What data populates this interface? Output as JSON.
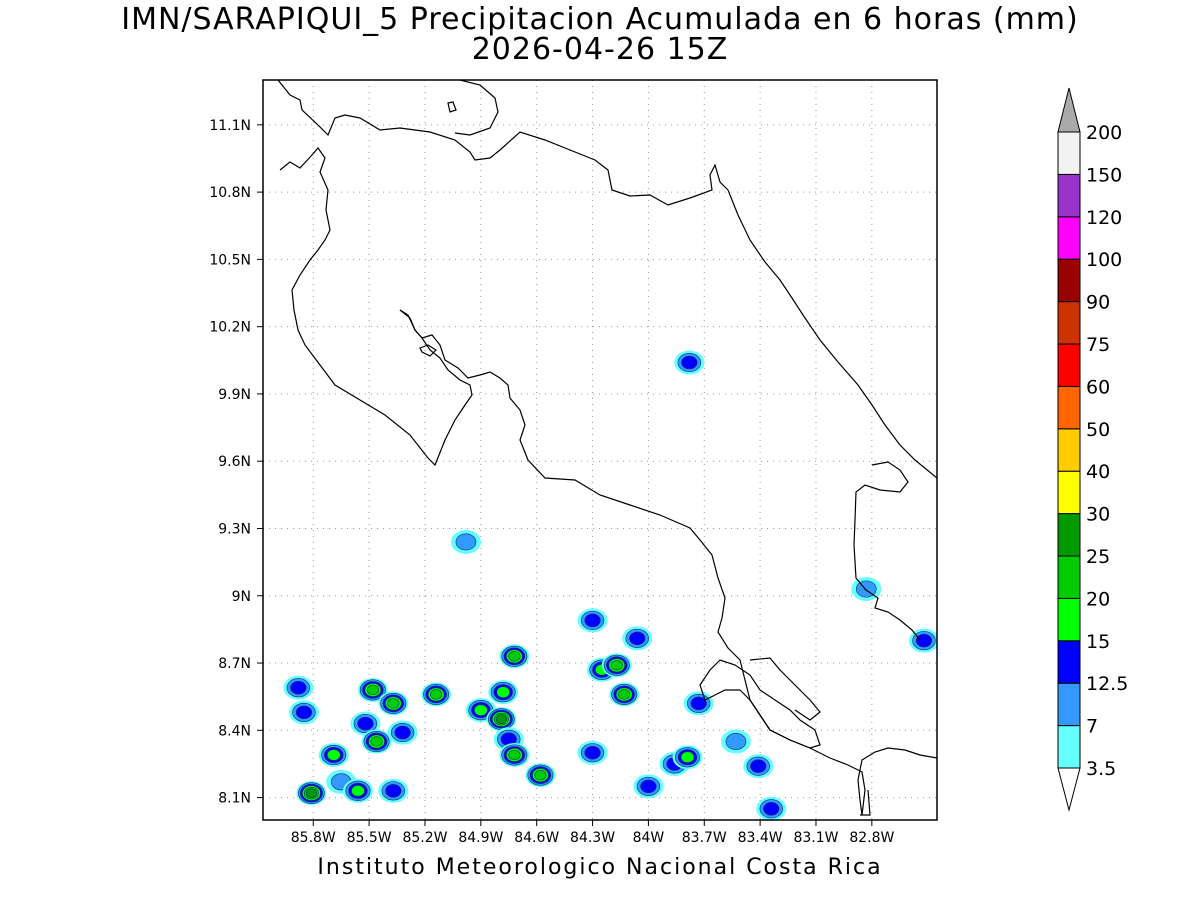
{
  "title": {
    "line1": "IMN/SARAPIQUI_5 Precipitacion Acumulada en 6 horas (mm)",
    "line2": "2026-04-26 15Z"
  },
  "footer": "Instituto Meteorologico Nacional Costa Rica",
  "map": {
    "lon_range": [
      -86.07,
      -82.45
    ],
    "lat_range": [
      8.0,
      11.3
    ],
    "lat_ticks": [
      "11.1N",
      "10.8N",
      "10.5N",
      "10.2N",
      "9.9N",
      "9.6N",
      "9.3N",
      "9N",
      "8.7N",
      "8.4N",
      "8.1N"
    ],
    "lon_ticks": [
      "85.8W",
      "85.5W",
      "85.2W",
      "84.9W",
      "84.6W",
      "84.3W",
      "84W",
      "83.7W",
      "83.4W",
      "83.1W",
      "82.8W"
    ],
    "grid": "dotted"
  },
  "colorbar": {
    "unit": "mm",
    "levels": [
      "3.5",
      "7",
      "12.5",
      "15",
      "20",
      "25",
      "30",
      "40",
      "50",
      "60",
      "75",
      "90",
      "100",
      "120",
      "150",
      "200"
    ],
    "colors": [
      "#66ffff",
      "#3399ff",
      "#0000ff",
      "#00ff00",
      "#00cc00",
      "#009900",
      "#ffff00",
      "#ffcc00",
      "#ff6600",
      "#ff0000",
      "#cc3300",
      "#990000",
      "#ff00ff",
      "#9933cc",
      "#f2f2f2",
      "#aaaaaa"
    ]
  },
  "precip_cells": [
    {
      "lon": -85.88,
      "lat": 8.59,
      "max": 12.5
    },
    {
      "lon": -85.85,
      "lat": 8.48,
      "max": 12.5
    },
    {
      "lon": -85.81,
      "lat": 8.12,
      "max": 25
    },
    {
      "lon": -85.69,
      "lat": 8.29,
      "max": 15
    },
    {
      "lon": -85.65,
      "lat": 8.17,
      "max": 7
    },
    {
      "lon": -85.56,
      "lat": 8.13,
      "max": 15
    },
    {
      "lon": -85.52,
      "lat": 8.43,
      "max": 12.5
    },
    {
      "lon": -85.48,
      "lat": 8.58,
      "max": 20
    },
    {
      "lon": -85.46,
      "lat": 8.35,
      "max": 20
    },
    {
      "lon": -85.37,
      "lat": 8.52,
      "max": 20
    },
    {
      "lon": -85.37,
      "lat": 8.13,
      "max": 12.5
    },
    {
      "lon": -85.32,
      "lat": 8.39,
      "max": 12.5
    },
    {
      "lon": -85.14,
      "lat": 8.56,
      "max": 20
    },
    {
      "lon": -84.98,
      "lat": 9.24,
      "max": 7
    },
    {
      "lon": -84.9,
      "lat": 8.49,
      "max": 15
    },
    {
      "lon": -84.79,
      "lat": 8.45,
      "max": 25
    },
    {
      "lon": -84.78,
      "lat": 8.57,
      "max": 15
    },
    {
      "lon": -84.75,
      "lat": 8.36,
      "max": 12.5
    },
    {
      "lon": -84.72,
      "lat": 8.73,
      "max": 20
    },
    {
      "lon": -84.72,
      "lat": 8.29,
      "max": 20
    },
    {
      "lon": -84.58,
      "lat": 8.2,
      "max": 20
    },
    {
      "lon": -84.3,
      "lat": 8.3,
      "max": 12.5
    },
    {
      "lon": -84.3,
      "lat": 8.89,
      "max": 12.5
    },
    {
      "lon": -84.25,
      "lat": 8.67,
      "max": 15
    },
    {
      "lon": -84.17,
      "lat": 8.69,
      "max": 20
    },
    {
      "lon": -84.13,
      "lat": 8.56,
      "max": 20
    },
    {
      "lon": -84.06,
      "lat": 8.81,
      "max": 12.5
    },
    {
      "lon": -84.0,
      "lat": 8.15,
      "max": 12.5
    },
    {
      "lon": -83.86,
      "lat": 8.25,
      "max": 12.5
    },
    {
      "lon": -83.79,
      "lat": 8.28,
      "max": 15
    },
    {
      "lon": -83.78,
      "lat": 10.04,
      "max": 12.5
    },
    {
      "lon": -83.73,
      "lat": 8.52,
      "max": 12.5
    },
    {
      "lon": -83.53,
      "lat": 8.35,
      "max": 7
    },
    {
      "lon": -83.41,
      "lat": 8.24,
      "max": 12.5
    },
    {
      "lon": -83.34,
      "lat": 8.05,
      "max": 12.5
    },
    {
      "lon": -82.83,
      "lat": 9.03,
      "max": 7
    },
    {
      "lon": -82.52,
      "lat": 8.8,
      "max": 12.5
    }
  ]
}
